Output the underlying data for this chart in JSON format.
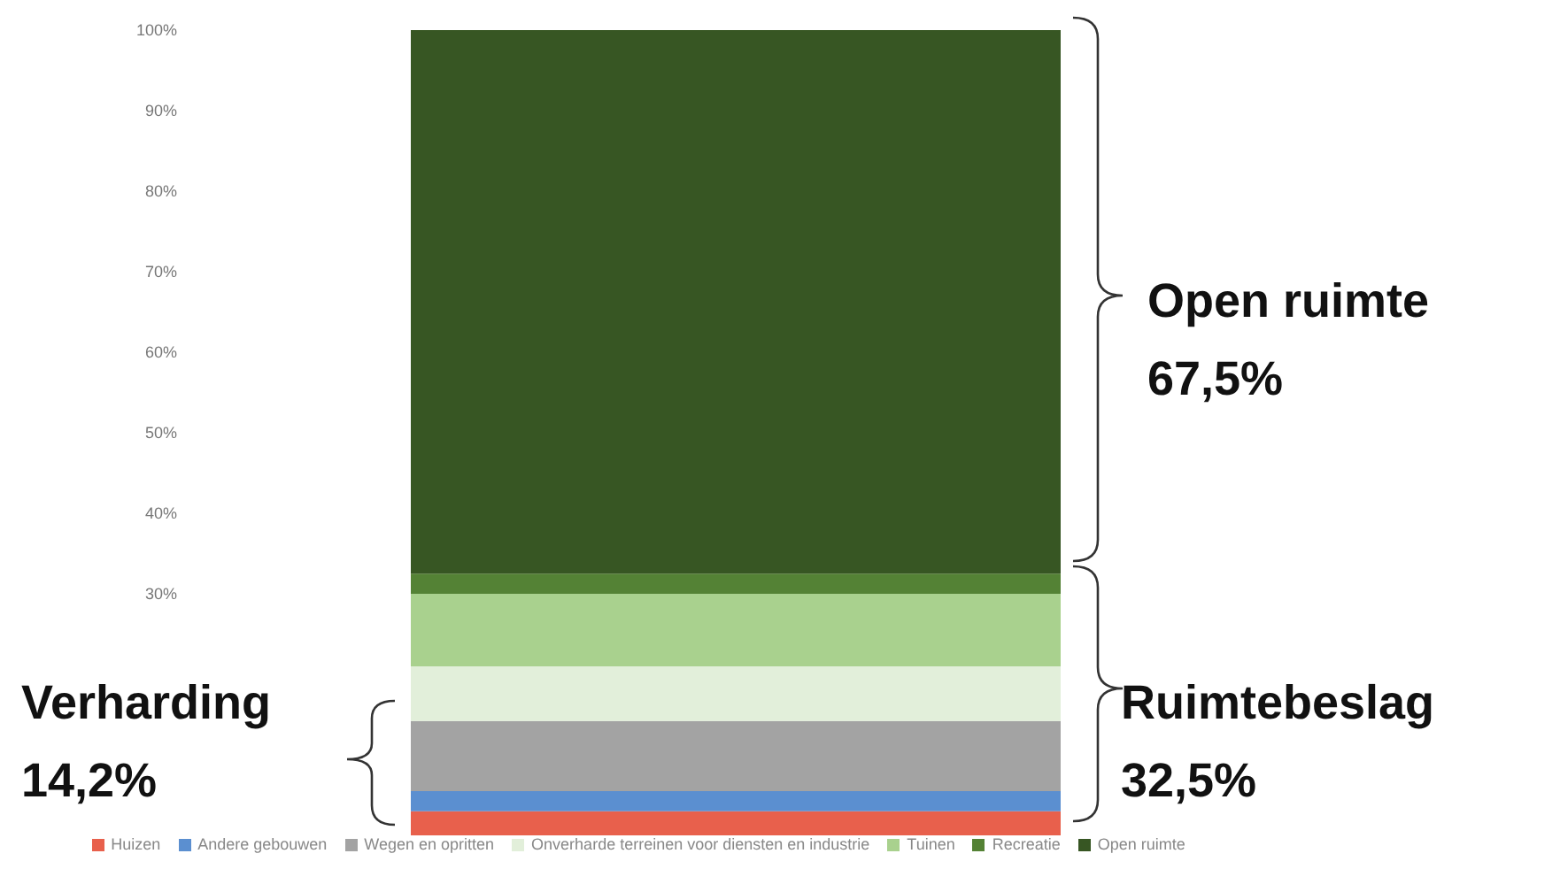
{
  "chart_data": {
    "type": "bar",
    "stacked": true,
    "categories": [
      null
    ],
    "series": [
      {
        "name": "Huizen",
        "color": "#e8604c",
        "values": [
          3.0
        ]
      },
      {
        "name": "Andere gebouwen",
        "color": "#5b8fd0",
        "values": [
          2.5
        ]
      },
      {
        "name": "Wegen en opritten",
        "color": "#a3a3a3",
        "values": [
          8.7
        ]
      },
      {
        "name": "Onverharde terreinen voor diensten en industrie",
        "color": "#e2efda",
        "values": [
          6.8
        ]
      },
      {
        "name": "Tuinen",
        "color": "#a9d18e",
        "values": [
          9.0
        ]
      },
      {
        "name": "Recreatie",
        "color": "#548235",
        "values": [
          2.5
        ]
      },
      {
        "name": "Open ruimte",
        "color": "#375623",
        "values": [
          67.5
        ]
      }
    ],
    "ylim": [
      0,
      100
    ],
    "yticks": [
      {
        "value": 30,
        "label": "30%"
      },
      {
        "value": 40,
        "label": "40%"
      },
      {
        "value": 50,
        "label": "50%"
      },
      {
        "value": 60,
        "label": "60%"
      },
      {
        "value": 70,
        "label": "70%"
      },
      {
        "value": 80,
        "label": "80%"
      },
      {
        "value": 90,
        "label": "90%"
      },
      {
        "value": 100,
        "label": "100%"
      }
    ],
    "tick_labels": "y",
    "grid": false,
    "legend": "bottom",
    "annotations": [
      {
        "text": "Open ruimte\n67,5%"
      },
      {
        "text": "Ruimtebeslag\n32,5%"
      },
      {
        "text": "Verharding\n14,2%"
      }
    ]
  }
}
